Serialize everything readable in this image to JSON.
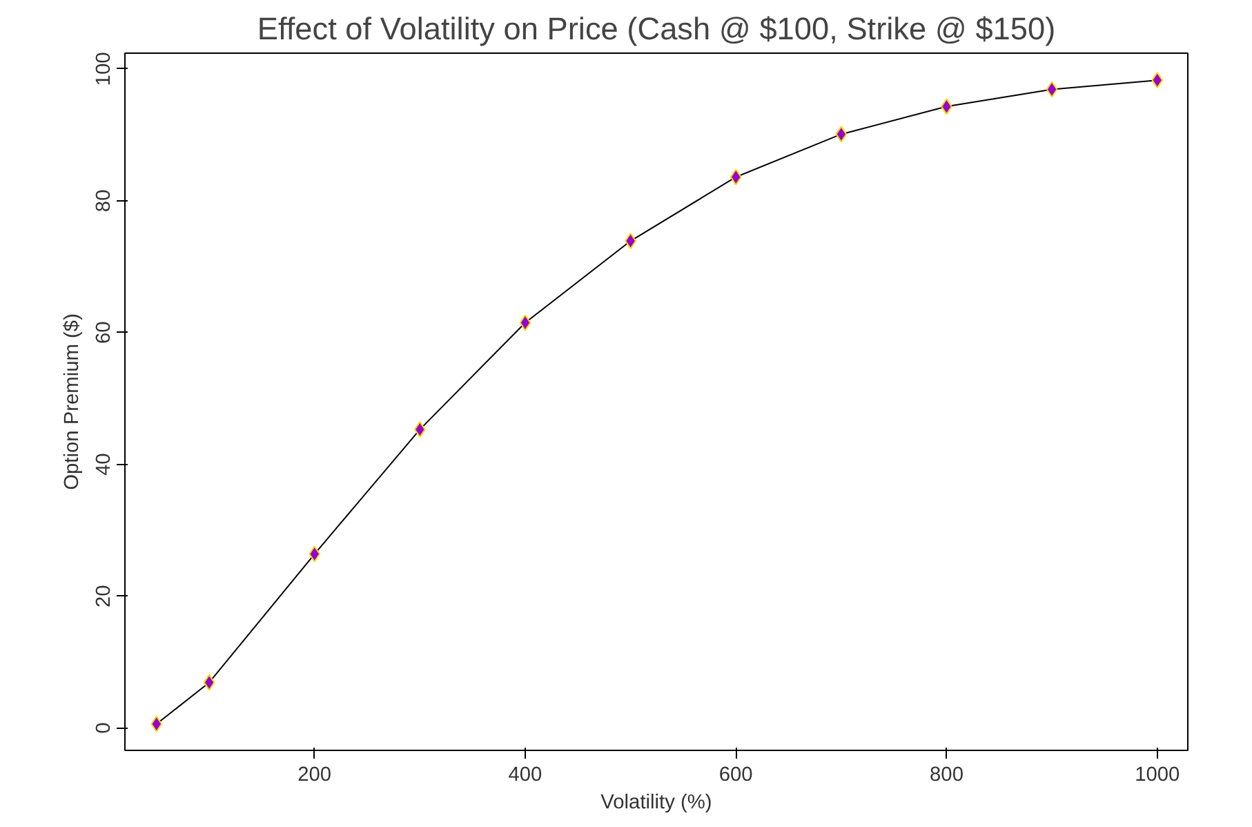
{
  "chart_data": {
    "type": "line",
    "title": "Effect of Volatility on Price (Cash @ $100, Strike @ $150)",
    "xlabel": "Volatility (%)",
    "ylabel": "Option Premium ($)",
    "x": [
      50,
      100,
      200,
      300,
      400,
      500,
      600,
      700,
      800,
      900,
      1000
    ],
    "series": [
      {
        "color": "#9400d3",
        "values": [
          0.6,
          6.9,
          26.4,
          45.3,
          61.5,
          73.9,
          83.6,
          90.1,
          94.3,
          96.9,
          98.3
        ]
      }
    ],
    "xlim": [
      20,
      1029
    ],
    "ylim": [
      -3.4,
      102.4
    ],
    "xticks": [
      200,
      400,
      600,
      800,
      1000
    ],
    "yticks": [
      0,
      20,
      40,
      60,
      80,
      100
    ],
    "grid": false,
    "marker": "diamond",
    "line_style": "solid"
  }
}
